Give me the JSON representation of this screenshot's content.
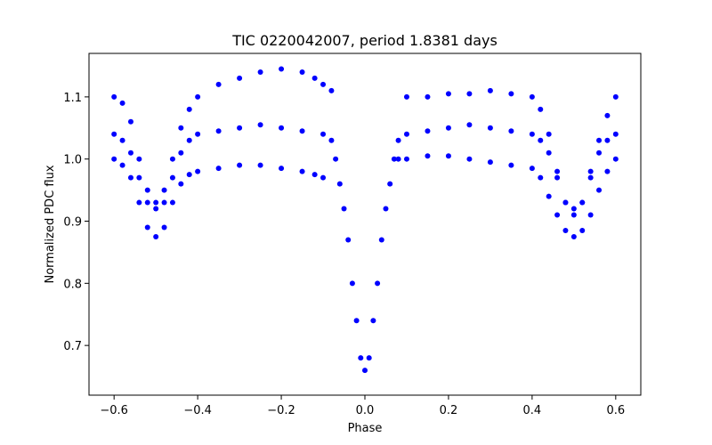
{
  "chart_data": {
    "type": "scatter",
    "title": "TIC 0220042007, period 1.8381 days",
    "xlabel": "Phase",
    "ylabel": "Normalized PDC flux",
    "xlim": [
      -0.66,
      0.66
    ],
    "ylim": [
      0.62,
      1.17
    ],
    "xticks": [
      -0.6,
      -0.4,
      -0.2,
      0.0,
      0.2,
      0.4,
      0.6
    ],
    "xtick_labels": [
      "−0.6",
      "−0.4",
      "−0.2",
      "0.0",
      "0.2",
      "0.4",
      "0.6"
    ],
    "yticks": [
      0.7,
      0.8,
      0.9,
      1.0,
      1.1
    ],
    "ytick_labels": [
      "0.7",
      "0.8",
      "0.9",
      "1.0",
      "1.1"
    ],
    "grid": false,
    "legend": "none",
    "marker_color": "#0000ff",
    "series": [
      {
        "points": [
          [
            -0.6,
            1.04
          ],
          [
            -0.58,
            1.03
          ],
          [
            -0.56,
            1.01
          ],
          [
            -0.54,
            0.97
          ],
          [
            -0.52,
            0.93
          ],
          [
            -0.5,
            0.92
          ],
          [
            -0.48,
            0.93
          ],
          [
            -0.46,
            0.97
          ],
          [
            -0.44,
            1.01
          ],
          [
            -0.42,
            1.03
          ],
          [
            -0.4,
            1.04
          ],
          [
            -0.35,
            1.045
          ],
          [
            -0.3,
            1.05
          ],
          [
            -0.25,
            1.055
          ],
          [
            -0.2,
            1.05
          ],
          [
            -0.15,
            1.045
          ],
          [
            -0.1,
            1.04
          ],
          [
            -0.08,
            1.03
          ],
          [
            -0.07,
            1.0
          ],
          [
            -0.06,
            0.96
          ],
          [
            -0.05,
            0.92
          ],
          [
            -0.04,
            0.87
          ],
          [
            -0.03,
            0.8
          ],
          [
            -0.02,
            0.74
          ],
          [
            -0.01,
            0.68
          ],
          [
            0.0,
            0.66
          ],
          [
            0.01,
            0.68
          ],
          [
            0.02,
            0.74
          ],
          [
            0.03,
            0.8
          ],
          [
            0.04,
            0.87
          ],
          [
            0.05,
            0.92
          ],
          [
            0.06,
            0.96
          ],
          [
            0.07,
            1.0
          ],
          [
            0.08,
            1.03
          ],
          [
            0.1,
            1.04
          ],
          [
            0.15,
            1.045
          ],
          [
            0.2,
            1.05
          ],
          [
            0.25,
            1.055
          ],
          [
            0.3,
            1.05
          ],
          [
            0.35,
            1.045
          ],
          [
            0.4,
            1.04
          ],
          [
            0.42,
            1.03
          ],
          [
            0.44,
            1.01
          ],
          [
            0.46,
            0.97
          ],
          [
            0.48,
            0.93
          ],
          [
            0.5,
            0.92
          ],
          [
            0.52,
            0.93
          ],
          [
            0.54,
            0.97
          ],
          [
            0.56,
            1.01
          ],
          [
            0.58,
            1.03
          ],
          [
            0.6,
            1.04
          ]
        ]
      },
      {
        "points": [
          [
            -0.6,
            1.1
          ],
          [
            -0.58,
            1.09
          ],
          [
            -0.56,
            1.06
          ],
          [
            -0.54,
            1.0
          ],
          [
            -0.52,
            0.95
          ],
          [
            -0.5,
            0.93
          ],
          [
            -0.48,
            0.95
          ],
          [
            -0.46,
            1.0
          ],
          [
            -0.44,
            1.05
          ],
          [
            -0.42,
            1.08
          ],
          [
            -0.4,
            1.1
          ],
          [
            -0.35,
            1.12
          ],
          [
            -0.3,
            1.13
          ],
          [
            -0.25,
            1.14
          ],
          [
            -0.2,
            1.145
          ],
          [
            -0.15,
            1.14
          ],
          [
            -0.12,
            1.13
          ],
          [
            -0.1,
            1.12
          ],
          [
            -0.08,
            1.11
          ]
        ]
      },
      {
        "points": [
          [
            -0.6,
            1.0
          ],
          [
            -0.58,
            0.99
          ],
          [
            -0.56,
            0.97
          ],
          [
            -0.54,
            0.93
          ],
          [
            -0.52,
            0.89
          ],
          [
            -0.5,
            0.875
          ],
          [
            -0.48,
            0.89
          ],
          [
            -0.46,
            0.93
          ],
          [
            -0.44,
            0.96
          ],
          [
            -0.42,
            0.975
          ],
          [
            -0.4,
            0.98
          ],
          [
            -0.35,
            0.985
          ],
          [
            -0.3,
            0.99
          ],
          [
            -0.25,
            0.99
          ],
          [
            -0.2,
            0.985
          ],
          [
            -0.15,
            0.98
          ],
          [
            -0.12,
            0.975
          ],
          [
            -0.1,
            0.97
          ]
        ]
      },
      {
        "points": [
          [
            0.1,
            1.1
          ],
          [
            0.15,
            1.1
          ],
          [
            0.2,
            1.105
          ],
          [
            0.25,
            1.105
          ],
          [
            0.3,
            1.11
          ],
          [
            0.35,
            1.105
          ],
          [
            0.4,
            1.1
          ],
          [
            0.42,
            1.08
          ],
          [
            0.44,
            1.04
          ],
          [
            0.46,
            0.98
          ],
          [
            0.48,
            0.93
          ],
          [
            0.5,
            0.91
          ],
          [
            0.52,
            0.93
          ],
          [
            0.54,
            0.98
          ],
          [
            0.56,
            1.03
          ],
          [
            0.58,
            1.07
          ],
          [
            0.6,
            1.1
          ]
        ]
      },
      {
        "points": [
          [
            0.08,
            1.0
          ],
          [
            0.1,
            1.0
          ],
          [
            0.15,
            1.005
          ],
          [
            0.2,
            1.005
          ],
          [
            0.25,
            1.0
          ],
          [
            0.3,
            0.995
          ],
          [
            0.35,
            0.99
          ],
          [
            0.4,
            0.985
          ],
          [
            0.42,
            0.97
          ],
          [
            0.44,
            0.94
          ],
          [
            0.46,
            0.91
          ],
          [
            0.48,
            0.885
          ],
          [
            0.5,
            0.875
          ],
          [
            0.52,
            0.885
          ],
          [
            0.54,
            0.91
          ],
          [
            0.56,
            0.95
          ],
          [
            0.58,
            0.98
          ],
          [
            0.6,
            1.0
          ]
        ]
      }
    ]
  }
}
